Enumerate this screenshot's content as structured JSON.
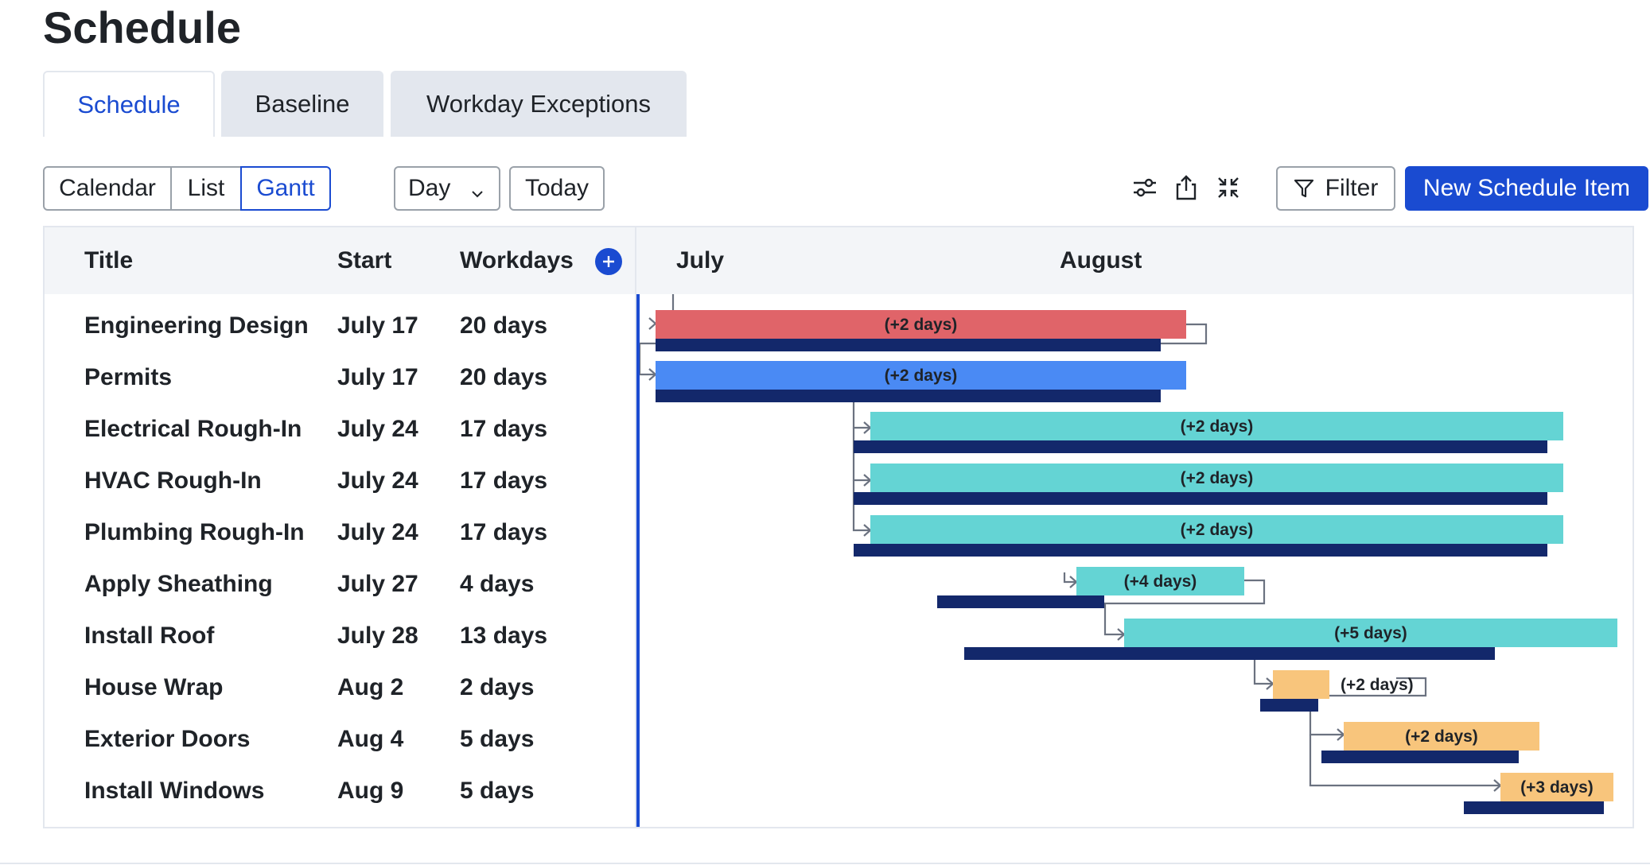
{
  "page": {
    "title": "Schedule"
  },
  "tabs": [
    {
      "label": "Schedule",
      "active": true
    },
    {
      "label": "Baseline",
      "active": false
    },
    {
      "label": "Workday Exceptions",
      "active": false
    }
  ],
  "toolbar": {
    "views": [
      "Calendar",
      "List",
      "Gantt"
    ],
    "selected_view": "Gantt",
    "zoom": "Day",
    "today_label": "Today",
    "filter_label": "Filter",
    "new_item_label": "New Schedule Item",
    "icons": [
      "sliders-icon",
      "share-icon",
      "collapse-icon",
      "filter-icon",
      "chevron-down-icon"
    ]
  },
  "table": {
    "columns": [
      "Title",
      "Start",
      "Workdays"
    ],
    "rows": [
      {
        "title": "Engineering Design",
        "start": "July 17",
        "workdays": "20 days"
      },
      {
        "title": "Permits",
        "start": "July 17",
        "workdays": "20 days"
      },
      {
        "title": "Electrical Rough-In",
        "start": "July 24",
        "workdays": "17 days"
      },
      {
        "title": "HVAC Rough-In",
        "start": "July 24",
        "workdays": "17 days"
      },
      {
        "title": "Plumbing Rough-In",
        "start": "July 24",
        "workdays": "17 days"
      },
      {
        "title": "Apply Sheathing",
        "start": "July 27",
        "workdays": "4 days"
      },
      {
        "title": "Install Roof",
        "start": "July 28",
        "workdays": "13 days"
      },
      {
        "title": "House Wrap",
        "start": "Aug 2",
        "workdays": "2 days"
      },
      {
        "title": "Exterior Doors",
        "start": "Aug 4",
        "workdays": "5 days"
      },
      {
        "title": "Install Windows",
        "start": "Aug 9",
        "workdays": "5 days"
      }
    ]
  },
  "gantt": {
    "months": [
      "July",
      "August"
    ],
    "colors": {
      "red": "#e06469",
      "blue": "#4a8af4",
      "teal": "#64d4d4",
      "orange": "#f8c57c",
      "baseline": "#13286b",
      "today": "#1a4bd1",
      "link": "#6b7280"
    },
    "bars": [
      {
        "label": "(+2 days)",
        "color": "red"
      },
      {
        "label": "(+2 days)",
        "color": "blue"
      },
      {
        "label": "(+2 days)",
        "color": "teal"
      },
      {
        "label": "(+2 days)",
        "color": "teal"
      },
      {
        "label": "(+2 days)",
        "color": "teal"
      },
      {
        "label": "(+4 days)",
        "color": "teal"
      },
      {
        "label": "(+5 days)",
        "color": "teal"
      },
      {
        "label": "(+2 days)",
        "color": "orange"
      },
      {
        "label": "(+2 days)",
        "color": "orange"
      },
      {
        "label": "(+3 days)",
        "color": "orange"
      }
    ]
  }
}
